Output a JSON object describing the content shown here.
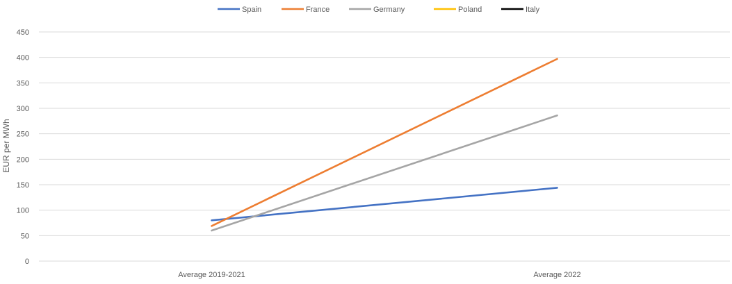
{
  "chart_data": {
    "type": "line",
    "title": "",
    "xlabel": "",
    "ylabel": "EUR per MWh",
    "categories": [
      "Average 2019-2021",
      "Average 2022"
    ],
    "ylim": [
      0,
      450
    ],
    "yticks": [
      0,
      50,
      100,
      150,
      200,
      250,
      300,
      350,
      400,
      450
    ],
    "grid": true,
    "legend_position": "top",
    "series": [
      {
        "name": "Spain",
        "color": "#4472C4",
        "values": [
          80,
          144
        ]
      },
      {
        "name": "France",
        "color": "#ED7D31",
        "values": [
          69,
          397
        ]
      },
      {
        "name": "Germany",
        "color": "#A5A5A5",
        "values": [
          60,
          286
        ]
      },
      {
        "name": "Poland",
        "color": "#FFC000",
        "values": [
          null,
          null
        ]
      },
      {
        "name": "Italy",
        "color": "#000000",
        "values": [
          null,
          null
        ]
      }
    ]
  }
}
